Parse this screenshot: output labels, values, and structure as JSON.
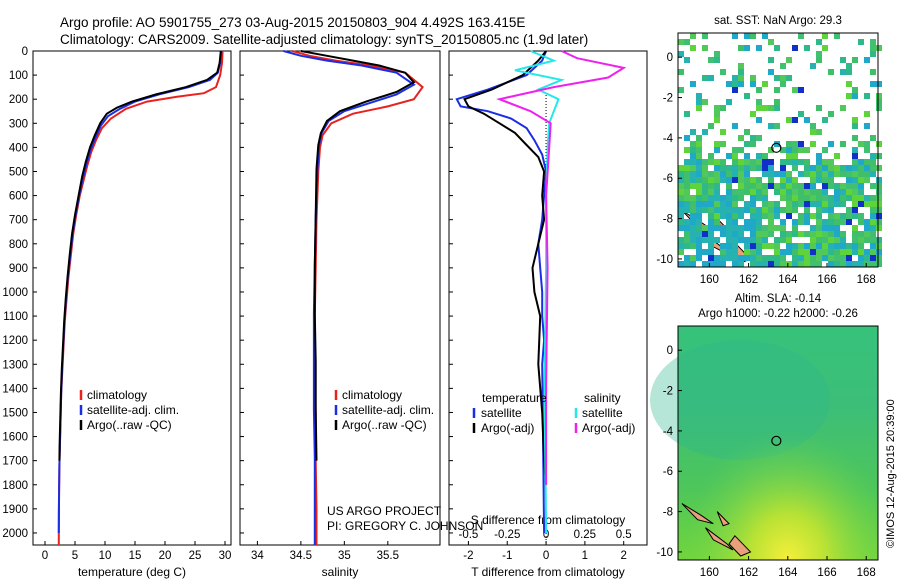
{
  "header": {
    "line1": "Argo profile: AO 5901755_273 03-Aug-2015 20150803_904 4.492S 163.415E",
    "line2": "Climatology: CARS2009. Satellite-adjusted climatology: synTS_20150805.nc (1.9d later)"
  },
  "credits": {
    "project": "US ARGO PROJECT",
    "pi": "PI: GREGORY C. JOHNSON",
    "imos": "©IMOS 12-Aug-2015 20:39:00"
  },
  "colors": {
    "climatology": "#e8231e",
    "satellite": "#1a2ee6",
    "argo": "#000000",
    "sal_satellite": "#22e8e8",
    "sal_argo": "#ee22ee"
  },
  "chart_data": [
    {
      "type": "line",
      "xlabel": "temperature (deg C)",
      "ylabel": "",
      "xlim": [
        -2,
        31
      ],
      "ylim": [
        2050,
        0
      ],
      "xticks": [
        "0",
        "5",
        "10",
        "15",
        "20",
        "25",
        "30"
      ],
      "yticks": [
        "0",
        "100",
        "200",
        "300",
        "400",
        "500",
        "600",
        "700",
        "800",
        "900",
        "1000",
        "1100",
        "1200",
        "1300",
        "1400",
        "1500",
        "1600",
        "1700",
        "1800",
        "1900",
        "2000"
      ],
      "legend": [
        "climatology",
        "satellite-adj. clim.",
        "Argo(..raw -QC)"
      ],
      "series": [
        {
          "name": "climatology",
          "color": "#e8231e",
          "x": [
            29.6,
            29.5,
            29.2,
            28.5,
            26.5,
            22,
            17,
            13.5,
            11,
            9.5,
            8.5,
            7.7,
            7,
            6.4,
            5.8,
            5.2,
            4.7,
            4.3,
            3.9,
            3.6,
            3.3,
            3.1,
            2.9,
            2.7,
            2.6,
            2.5,
            2.4,
            2.35,
            2.3,
            2.3
          ],
          "y": [
            0,
            50,
            100,
            150,
            175,
            190,
            210,
            240,
            280,
            320,
            370,
            420,
            480,
            540,
            600,
            680,
            760,
            850,
            940,
            1030,
            1120,
            1220,
            1320,
            1420,
            1520,
            1620,
            1720,
            1820,
            1920,
            2050
          ]
        },
        {
          "name": "satellite-adj. clim.",
          "color": "#1a2ee6",
          "x": [
            29.4,
            29.2,
            28.8,
            27.5,
            24,
            19,
            15,
            12.5,
            10.5,
            9.3,
            8.4,
            7.6,
            6.9,
            6.3,
            5.7,
            5.1,
            4.6,
            4.2,
            3.8,
            3.5,
            3.25,
            3.05,
            2.85,
            2.7,
            2.6,
            2.5,
            2.4,
            2.35,
            2.3
          ],
          "y": [
            0,
            50,
            90,
            120,
            150,
            180,
            210,
            240,
            270,
            310,
            360,
            410,
            470,
            530,
            600,
            680,
            760,
            850,
            940,
            1030,
            1120,
            1220,
            1320,
            1420,
            1520,
            1620,
            1720,
            1820,
            2000
          ]
        },
        {
          "name": "Argo(..raw -QC)",
          "color": "#000000",
          "x": [
            29.3,
            29.1,
            28.7,
            27,
            23.5,
            18.5,
            14.5,
            12,
            10.3,
            9.2,
            8.3,
            7.5,
            6.8,
            6.2,
            5.6,
            5,
            4.5,
            4.1,
            3.75,
            3.45,
            3.2,
            3,
            2.8,
            2.65,
            2.55,
            2.45,
            2.4
          ],
          "y": [
            0,
            50,
            90,
            120,
            150,
            180,
            210,
            235,
            260,
            300,
            350,
            400,
            460,
            520,
            600,
            680,
            760,
            850,
            940,
            1030,
            1120,
            1220,
            1320,
            1420,
            1520,
            1620,
            1700
          ]
        }
      ]
    },
    {
      "type": "line",
      "xlabel": "salinity",
      "ylabel": "",
      "xlim": [
        33.8,
        36.1
      ],
      "ylim": [
        2050,
        0
      ],
      "xticks": [
        "34",
        "34.5",
        "35",
        "35.5"
      ],
      "legend": [
        "climatology",
        "satellite-adj. clim.",
        "Argo(..raw -QC)"
      ],
      "series": [
        {
          "name": "climatology",
          "color": "#e8231e",
          "x": [
            34.4,
            34.6,
            34.9,
            35.3,
            35.7,
            35.9,
            35.8,
            35.5,
            35.1,
            34.85,
            34.75,
            34.72,
            34.7,
            34.68,
            34.67,
            34.66,
            34.66,
            34.67,
            34.67,
            34.68,
            34.68
          ],
          "y": [
            0,
            20,
            40,
            60,
            90,
            150,
            200,
            230,
            260,
            300,
            350,
            400,
            500,
            700,
            900,
            1100,
            1300,
            1500,
            1700,
            1900,
            2050
          ]
        },
        {
          "name": "satellite-adj. clim.",
          "color": "#1a2ee6",
          "x": [
            34.3,
            34.5,
            34.8,
            35.2,
            35.6,
            35.8,
            35.6,
            35.3,
            35,
            34.82,
            34.74,
            34.71,
            34.69,
            34.67,
            34.66,
            34.65,
            34.65,
            34.65,
            34.66,
            34.66,
            34.66
          ],
          "y": [
            0,
            20,
            40,
            60,
            90,
            140,
            180,
            215,
            250,
            290,
            340,
            390,
            490,
            690,
            890,
            1090,
            1290,
            1490,
            1690,
            1890,
            2050
          ]
        },
        {
          "name": "Argo(..raw -QC)",
          "color": "#000000",
          "x": [
            34.5,
            34.8,
            35.1,
            35.4,
            35.7,
            35.8,
            35.6,
            35.25,
            34.95,
            34.8,
            34.73,
            34.7,
            34.68,
            34.67,
            34.66,
            34.66,
            34.67,
            34.67,
            34.68
          ],
          "y": [
            0,
            20,
            40,
            60,
            90,
            130,
            170,
            210,
            250,
            290,
            340,
            390,
            490,
            690,
            890,
            1090,
            1290,
            1490,
            1700
          ]
        }
      ]
    },
    {
      "type": "line",
      "xlabel": "T difference from climatology",
      "x2label": "S difference from climatology",
      "ylim": [
        2050,
        0
      ],
      "xlim": [
        -2.5,
        2.6
      ],
      "x2lim": [
        -0.625,
        0.65
      ],
      "xticks": [
        "-2",
        "-1",
        "0",
        "1",
        "2"
      ],
      "x2ticks": [
        "-0.5",
        "-0.25",
        "0",
        "0.25",
        "0.5"
      ],
      "legend_t_title": "temperature",
      "legend_s_title": "salinity",
      "legend_t": [
        "satellite",
        "Argo(-adj)"
      ],
      "legend_s": [
        "satellite",
        "Argo(-adj)"
      ],
      "series": [
        {
          "name": "temperature satellite",
          "color": "#1a2ee6",
          "x": [
            0,
            -0.1,
            -0.5,
            -1.5,
            -2.3,
            -2.2,
            -1.5,
            -0.9,
            -0.5,
            -0.3,
            -0.1,
            0,
            -0.05,
            -0.1,
            -0.2,
            -0.15,
            -0.1,
            -0.1,
            -0.05,
            -0.1,
            -0.05
          ],
          "y": [
            0,
            40,
            100,
            160,
            200,
            230,
            250,
            280,
            320,
            370,
            430,
            500,
            600,
            700,
            800,
            900,
            1000,
            1100,
            1200,
            1300,
            2000
          ]
        },
        {
          "name": "temperature Argo(-adj)",
          "color": "#000000",
          "x": [
            0,
            -0.2,
            -0.6,
            -1.4,
            -2.1,
            -2.0,
            -1.6,
            -1.2,
            -0.8,
            -0.5,
            -0.2,
            -0.05,
            -0.1,
            -0.05,
            -0.2,
            -0.35,
            -0.3,
            -0.15,
            -0.2,
            -0.1,
            -0.05,
            0
          ],
          "y": [
            0,
            40,
            100,
            160,
            200,
            230,
            260,
            300,
            340,
            390,
            440,
            500,
            600,
            700,
            800,
            900,
            1000,
            1100,
            1300,
            1500,
            1700,
            1800
          ]
        },
        {
          "name": "salinity satellite",
          "color": "#22e8e8",
          "x": [
            -0.1,
            0.05,
            -0.2,
            0.1,
            -0.05,
            0.08,
            0.05,
            0.02,
            0.01,
            0.0,
            0.0,
            -0.01,
            0.0
          ],
          "y": [
            0,
            40,
            80,
            120,
            160,
            200,
            250,
            300,
            400,
            600,
            900,
            1400,
            2000
          ]
        },
        {
          "name": "salinity Argo(-adj)",
          "color": "#ee22ee",
          "x": [
            0.1,
            0.2,
            0.5,
            0.4,
            0.05,
            -0.3,
            -0.1,
            0.03,
            0.02,
            0.0,
            0.01,
            0.0,
            0.0
          ],
          "y": [
            0,
            30,
            70,
            110,
            150,
            200,
            250,
            300,
            400,
            600,
            900,
            1400,
            1800
          ]
        }
      ]
    },
    {
      "type": "heatmap",
      "title": "sat. SST: NaN Argo: 29.3",
      "xlim": [
        158.4,
        168.6
      ],
      "ylim": [
        -10.4,
        1.2
      ],
      "xticks": [
        "160",
        "162",
        "164",
        "166",
        "168"
      ],
      "yticks": [
        "0",
        "-2",
        "-4",
        "-6",
        "-8",
        "-10"
      ],
      "marker": {
        "lon": 163.415,
        "lat": -4.492
      }
    },
    {
      "type": "heatmap",
      "title": "Altim. SLA: -0.14",
      "subtitle": "Argo h1000: -0.22 h2000: -0.26",
      "xlim": [
        158.4,
        168.6
      ],
      "ylim": [
        -10.4,
        1.2
      ],
      "xticks": [
        "160",
        "162",
        "164",
        "166",
        "168"
      ],
      "yticks": [
        "0",
        "-2",
        "-4",
        "-6",
        "-8",
        "-10"
      ],
      "marker": {
        "lon": 163.415,
        "lat": -4.492
      }
    }
  ]
}
